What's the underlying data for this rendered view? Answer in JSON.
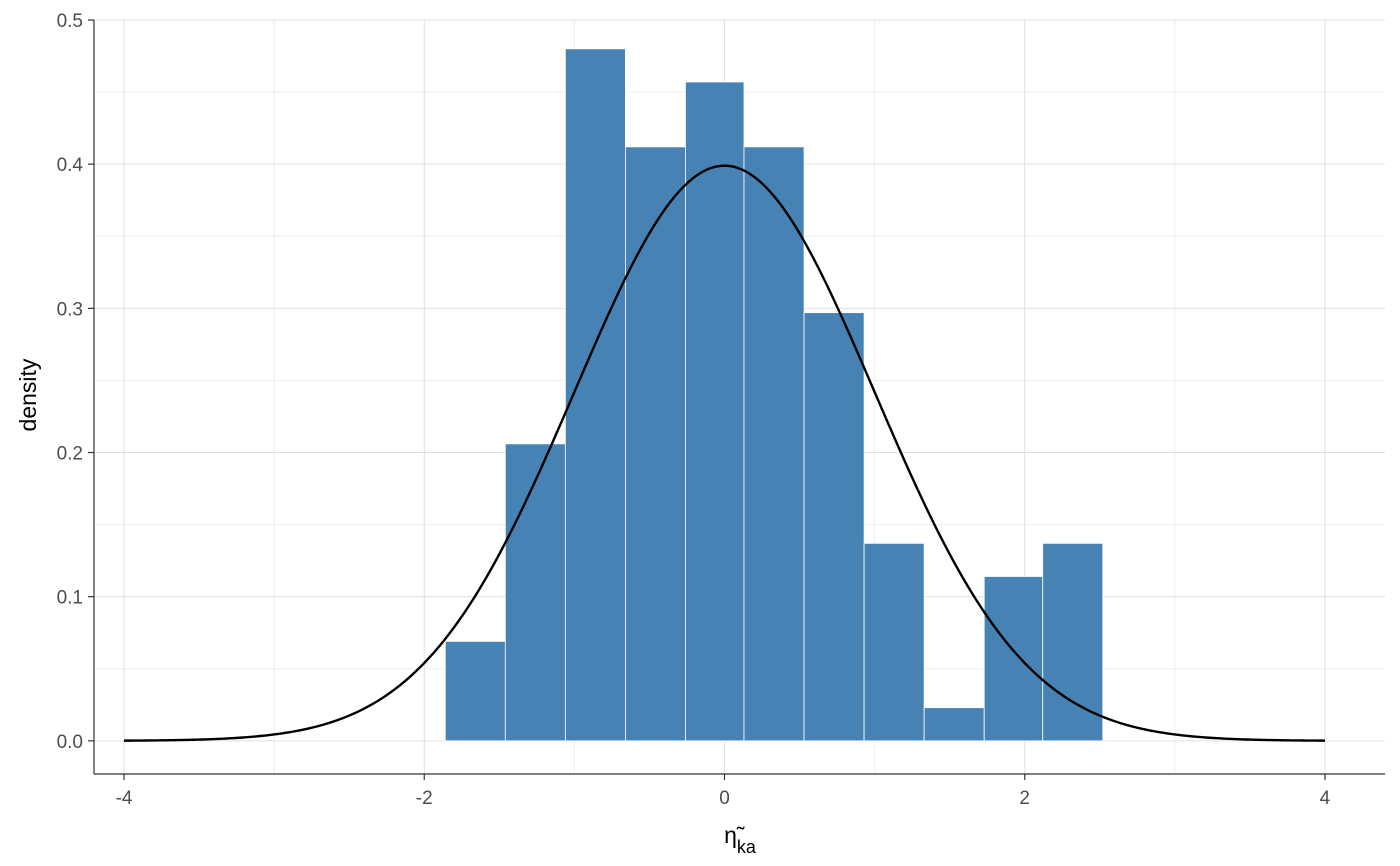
{
  "chart_data": {
    "type": "bar",
    "subtype": "histogram",
    "xlabel_base": "η̃",
    "xlabel_subscript": "ka",
    "ylabel": "density",
    "xlim": [
      -4.2,
      4.4
    ],
    "ylim": [
      -0.023,
      0.5
    ],
    "x_ticks": [
      -4,
      -2,
      0,
      2,
      4
    ],
    "x_tick_labels": [
      "-4",
      "-2",
      "0",
      "2",
      "4"
    ],
    "y_ticks": [
      0.0,
      0.1,
      0.2,
      0.3,
      0.4,
      0.5
    ],
    "y_tick_labels": [
      "0.0",
      "0.1",
      "0.2",
      "0.3",
      "0.4",
      "0.5"
    ],
    "grid": true,
    "bar_color": "#4682b4",
    "bins": [
      {
        "x0": -1.86,
        "x1": -1.46,
        "density": 0.069
      },
      {
        "x0": -1.46,
        "x1": -1.06,
        "density": 0.206
      },
      {
        "x0": -1.06,
        "x1": -0.66,
        "density": 0.48
      },
      {
        "x0": -0.66,
        "x1": -0.26,
        "density": 0.412
      },
      {
        "x0": -0.26,
        "x1": 0.13,
        "density": 0.457
      },
      {
        "x0": 0.13,
        "x1": 0.53,
        "density": 0.412
      },
      {
        "x0": 0.53,
        "x1": 0.93,
        "density": 0.297
      },
      {
        "x0": 0.93,
        "x1": 1.33,
        "density": 0.137
      },
      {
        "x0": 1.33,
        "x1": 1.73,
        "density": 0.023
      },
      {
        "x0": 1.73,
        "x1": 2.12,
        "density": 0.114
      },
      {
        "x0": 2.12,
        "x1": 2.52,
        "density": 0.137
      }
    ],
    "overlay": {
      "type": "line",
      "function": "normal_pdf",
      "mean": 0,
      "sd": 1,
      "x_range": [
        -4,
        4
      ],
      "color": "#000000"
    }
  }
}
